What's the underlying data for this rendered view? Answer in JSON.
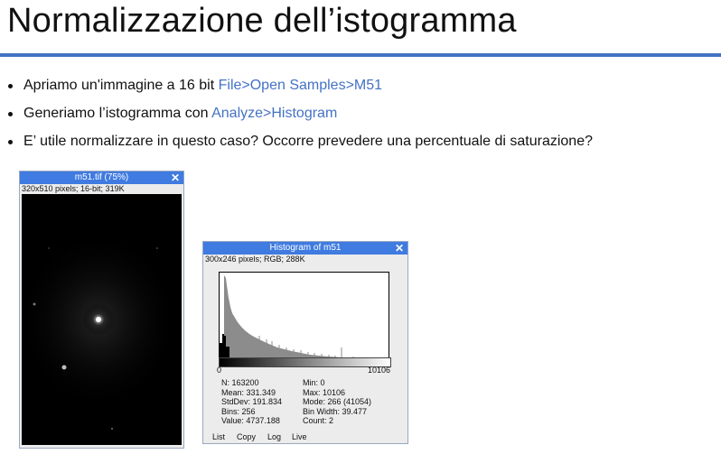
{
  "slide": {
    "title": "Normalizzazione dell’istogramma",
    "bullets": [
      {
        "text": "Apriamo un'immagine a 16 bit ",
        "link": "File>Open Samples>M51"
      },
      {
        "text": "Generiamo l’istogramma con ",
        "link": "Analyze>Histogram"
      },
      {
        "text": "E’ utile normalizzare in questo caso? Occorre prevedere una percentuale di saturazione?",
        "link": ""
      }
    ],
    "accent_color": "#4472C4"
  },
  "image_window": {
    "title": "m51.tif (75%)",
    "info": "320x510 pixels; 16-bit; 319K",
    "close_glyph": "✕"
  },
  "histogram_window": {
    "title": "Histogram of m51",
    "info": "300x246 pixels; RGB; 288K",
    "close_glyph": "✕",
    "axis_min": "0",
    "axis_max": "10106",
    "stats_left": [
      "N: 163200",
      "Mean: 331.349",
      "StdDev: 191.834",
      "Bins: 256",
      "Value: 4737.188"
    ],
    "stats_right": [
      "Min: 0",
      "Max: 10106",
      "Mode: 266 (41054)",
      "Bin Width: 39.477",
      "Count: 2"
    ],
    "buttons": [
      "List",
      "Copy",
      "Log",
      "Live"
    ]
  }
}
